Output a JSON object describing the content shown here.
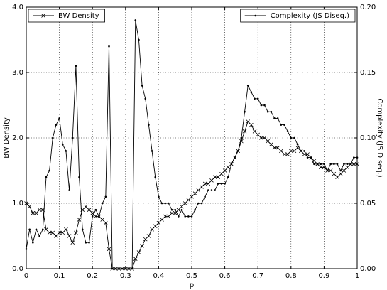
{
  "chart_data": {
    "type": "line",
    "xlabel": "p",
    "ylabel": "BW Density",
    "y2label": "Complexity (JS Diseq.)",
    "x": [
      0,
      0.01,
      0.02,
      0.03,
      0.04,
      0.05,
      0.06,
      0.07,
      0.08,
      0.09,
      0.1,
      0.11,
      0.12,
      0.13,
      0.14,
      0.15,
      0.16,
      0.17,
      0.18,
      0.19,
      0.2,
      0.21,
      0.22,
      0.23,
      0.24,
      0.25,
      0.26,
      0.27,
      0.28,
      0.29,
      0.3,
      0.31,
      0.32,
      0.33,
      0.34,
      0.35,
      0.36,
      0.37,
      0.38,
      0.39,
      0.4,
      0.41,
      0.42,
      0.43,
      0.44,
      0.45,
      0.46,
      0.47,
      0.48,
      0.49,
      0.5,
      0.51,
      0.52,
      0.53,
      0.54,
      0.55,
      0.56,
      0.57,
      0.58,
      0.59,
      0.6,
      0.61,
      0.62,
      0.63,
      0.64,
      0.65,
      0.66,
      0.67,
      0.68,
      0.69,
      0.7,
      0.71,
      0.72,
      0.73,
      0.74,
      0.75,
      0.76,
      0.77,
      0.78,
      0.79,
      0.8,
      0.81,
      0.82,
      0.83,
      0.84,
      0.85,
      0.86,
      0.87,
      0.88,
      0.89,
      0.9,
      0.91,
      0.92,
      0.93,
      0.94,
      0.95,
      0.96,
      0.97,
      0.98,
      0.99,
      1
    ],
    "series": [
      {
        "name": "BW Density",
        "color": "#000000",
        "marker": "x",
        "legend": "upper left",
        "values": [
          1.0,
          0.95,
          0.85,
          0.85,
          0.9,
          0.9,
          0.6,
          0.55,
          0.55,
          0.5,
          0.55,
          0.55,
          0.6,
          0.5,
          0.4,
          0.55,
          0.75,
          0.9,
          0.95,
          0.9,
          0.85,
          0.8,
          0.8,
          0.75,
          0.7,
          0.3,
          0,
          0,
          0,
          0,
          0,
          0,
          0,
          0.15,
          0.25,
          0.35,
          0.45,
          0.5,
          0.6,
          0.65,
          0.7,
          0.75,
          0.8,
          0.8,
          0.85,
          0.85,
          0.9,
          0.95,
          1.0,
          1.05,
          1.1,
          1.15,
          1.2,
          1.25,
          1.3,
          1.3,
          1.35,
          1.4,
          1.4,
          1.45,
          1.5,
          1.55,
          1.6,
          1.7,
          1.8,
          1.95,
          2.1,
          2.25,
          2.2,
          2.1,
          2.05,
          2.0,
          2.0,
          1.95,
          1.9,
          1.85,
          1.85,
          1.8,
          1.75,
          1.75,
          1.8,
          1.8,
          1.85,
          1.8,
          1.75,
          1.75,
          1.7,
          1.65,
          1.6,
          1.55,
          1.55,
          1.5,
          1.5,
          1.45,
          1.4,
          1.45,
          1.5,
          1.55,
          1.6,
          1.6,
          1.6
        ]
      },
      {
        "name": "Complexity (JS Diseq.)",
        "color": "#000000",
        "marker": "dot",
        "legend": "upper right",
        "axis": "y2",
        "values": [
          0.015,
          0.03,
          0.02,
          0.03,
          0.025,
          0.03,
          0.07,
          0.075,
          0.1,
          0.11,
          0.115,
          0.095,
          0.09,
          0.06,
          0.1,
          0.155,
          0.07,
          0.03,
          0.02,
          0.02,
          0.04,
          0.045,
          0.04,
          0.05,
          0.055,
          0.17,
          0,
          0,
          0,
          0,
          0,
          0,
          0,
          0.19,
          0.175,
          0.14,
          0.13,
          0.11,
          0.09,
          0.07,
          0.055,
          0.05,
          0.05,
          0.05,
          0.045,
          0.045,
          0.04,
          0.045,
          0.04,
          0.04,
          0.04,
          0.045,
          0.05,
          0.05,
          0.055,
          0.06,
          0.06,
          0.06,
          0.065,
          0.065,
          0.065,
          0.07,
          0.08,
          0.085,
          0.09,
          0.1,
          0.12,
          0.14,
          0.135,
          0.13,
          0.13,
          0.125,
          0.125,
          0.12,
          0.12,
          0.115,
          0.115,
          0.11,
          0.11,
          0.105,
          0.1,
          0.1,
          0.095,
          0.09,
          0.09,
          0.085,
          0.085,
          0.08,
          0.08,
          0.08,
          0.08,
          0.075,
          0.08,
          0.08,
          0.08,
          0.075,
          0.08,
          0.08,
          0.08,
          0.085,
          0.085
        ]
      }
    ],
    "xlim": [
      0,
      1
    ],
    "xticks": [
      0,
      0.1,
      0.2,
      0.3,
      0.4,
      0.5,
      0.6,
      0.7,
      0.8,
      0.9,
      1
    ],
    "ylim": [
      0,
      4
    ],
    "yticks": [
      {
        "value": 0,
        "label": "0.0"
      },
      {
        "value": 1,
        "label": "1.0"
      },
      {
        "value": 2,
        "label": "2.0"
      },
      {
        "value": 3,
        "label": "3.0"
      },
      {
        "value": 4,
        "label": "4.0"
      }
    ],
    "y2lim": [
      0,
      0.2
    ],
    "y2ticks": [
      {
        "value": 0,
        "label": "0.00"
      },
      {
        "value": 0.05,
        "label": "0.05"
      },
      {
        "value": 0.1,
        "label": "0.10"
      },
      {
        "value": 0.15,
        "label": "0.15"
      },
      {
        "value": 0.2,
        "label": "0.20"
      }
    ],
    "grid": true
  }
}
